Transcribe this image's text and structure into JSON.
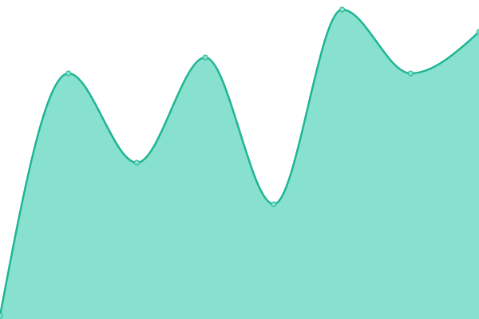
{
  "chart_data": {
    "type": "area",
    "categories": [
      null,
      null,
      null,
      null,
      null,
      null,
      null,
      null
    ],
    "series": [
      {
        "color": "#1fb593",
        "fill": "#88e0cf",
        "values": [
          1,
          77,
          49,
          82,
          36,
          97,
          77,
          90
        ]
      }
    ],
    "ylim": [
      0,
      100
    ],
    "grid": false
  }
}
